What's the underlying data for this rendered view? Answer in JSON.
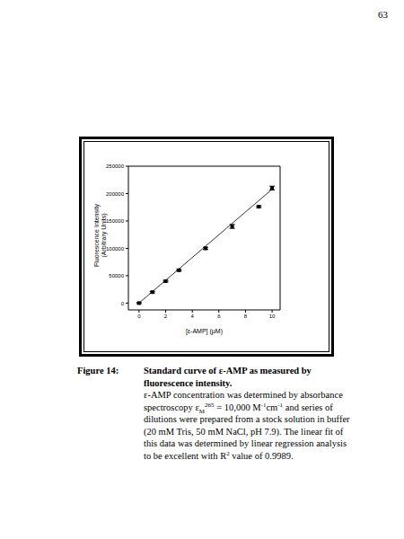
{
  "page_number": "63",
  "chart_data": {
    "type": "scatter",
    "x_label": "[ε-AMP] (μM)",
    "y_label": [
      "Fluorescence Intensity",
      "(Arbitrary Units)"
    ],
    "x": [
      0,
      1,
      2,
      3,
      5,
      7,
      9,
      10
    ],
    "values": [
      0,
      20000,
      40000,
      60000,
      100000,
      140000,
      176000,
      210000
    ],
    "errors": [
      1000,
      1500,
      1500,
      1500,
      2000,
      3500,
      1500,
      3500
    ],
    "color": "#000000",
    "marker": "square",
    "fit": {
      "type": "line",
      "x": [
        0,
        10
      ],
      "values": [
        0,
        208000
      ],
      "color": "#000000",
      "line_style": "solid"
    },
    "xlim": [
      -0.8,
      10.6
    ],
    "ylim": [
      -12500,
      250000
    ],
    "xticks": [
      0,
      2,
      4,
      6,
      8,
      10
    ],
    "yticks": [
      0,
      50000,
      100000,
      150000,
      200000,
      250000
    ],
    "grid": false
  },
  "caption": {
    "label": "Figure 14:",
    "title": "Standard curve of ε-AMP as measured by fluorescence intensity.",
    "body": [
      {
        "text": "ε-AMP concentration was determined by absorbance spectroscopy ε",
        "style": "normal"
      },
      {
        "text": "M",
        "style": "sub"
      },
      {
        "text": "265",
        "style": "sup"
      },
      {
        "text": " = 10,000 M",
        "style": "normal"
      },
      {
        "text": "-1",
        "style": "sup"
      },
      {
        "text": "cm",
        "style": "normal"
      },
      {
        "text": "-1",
        "style": "sup"
      },
      {
        "text": " and series of dilutions were prepared from a stock solution in buffer (20 mM Tris,  50 mM NaCl, pH 7.9). The linear fit of this data was determined by linear regression analysis to be excellent with R",
        "style": "normal"
      },
      {
        "text": "2",
        "style": "sup"
      },
      {
        "text": " value of 0.9989.",
        "style": "normal"
      }
    ]
  }
}
